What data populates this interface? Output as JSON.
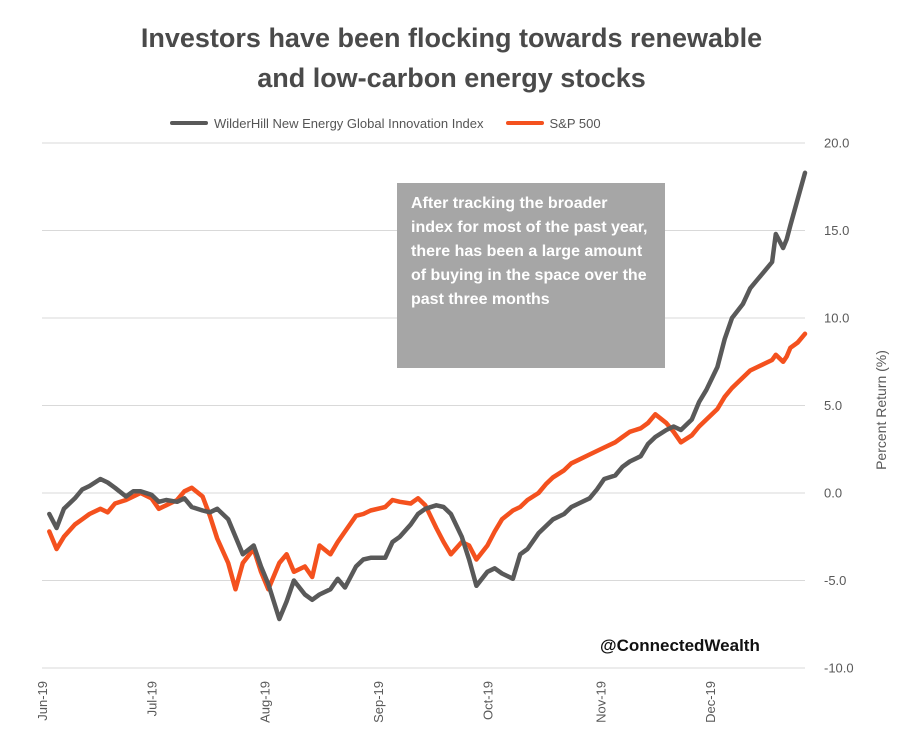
{
  "chart_data": {
    "type": "line",
    "title_lines": [
      "Investors have been flocking towards renewable",
      "and low-carbon energy stocks"
    ],
    "ylabel": "Percent Return (%)",
    "xlabel": "",
    "ylim": [
      -10,
      20
    ],
    "y_ticks": [
      "20.0",
      "15.0",
      "10.0",
      "5.0",
      "0.0",
      "-5.0",
      "-10.0"
    ],
    "y_tick_values": [
      20,
      15,
      10,
      5,
      0,
      -5,
      -10
    ],
    "x_tick_labels": [
      "Jun-19",
      "Jul-19",
      "Aug-19",
      "Sep-19",
      "Oct-19",
      "Nov-19",
      "Dec-19"
    ],
    "x_tick_dates": [
      "2019-06-01",
      "2019-07-01",
      "2019-08-01",
      "2019-09-01",
      "2019-10-01",
      "2019-11-01",
      "2019-12-01"
    ],
    "xlim": [
      "2019-06-01",
      "2019-12-27"
    ],
    "y_axis_side": "right",
    "grid": "horizontal",
    "legend_position": "top",
    "series": [
      {
        "name": "WilderHill New Energy Global Innovation Index",
        "color": "#595959",
        "points": [
          [
            "2019-06-03",
            -1.2
          ],
          [
            "2019-06-05",
            -2.0
          ],
          [
            "2019-06-07",
            -0.9
          ],
          [
            "2019-06-10",
            -0.3
          ],
          [
            "2019-06-12",
            0.2
          ],
          [
            "2019-06-14",
            0.4
          ],
          [
            "2019-06-17",
            0.8
          ],
          [
            "2019-06-19",
            0.6
          ],
          [
            "2019-06-21",
            0.3
          ],
          [
            "2019-06-24",
            -0.2
          ],
          [
            "2019-06-26",
            0.1
          ],
          [
            "2019-06-28",
            0.1
          ],
          [
            "2019-07-01",
            -0.1
          ],
          [
            "2019-07-03",
            -0.5
          ],
          [
            "2019-07-05",
            -0.4
          ],
          [
            "2019-07-08",
            -0.5
          ],
          [
            "2019-07-10",
            -0.3
          ],
          [
            "2019-07-12",
            -0.8
          ],
          [
            "2019-07-15",
            -1.0
          ],
          [
            "2019-07-17",
            -1.1
          ],
          [
            "2019-07-19",
            -0.9
          ],
          [
            "2019-07-22",
            -1.5
          ],
          [
            "2019-07-24",
            -2.5
          ],
          [
            "2019-07-26",
            -3.5
          ],
          [
            "2019-07-29",
            -3.0
          ],
          [
            "2019-07-31",
            -4.2
          ],
          [
            "2019-08-02",
            -5.2
          ],
          [
            "2019-08-05",
            -7.2
          ],
          [
            "2019-08-07",
            -6.2
          ],
          [
            "2019-08-09",
            -5.0
          ],
          [
            "2019-08-12",
            -5.8
          ],
          [
            "2019-08-14",
            -6.1
          ],
          [
            "2019-08-16",
            -5.8
          ],
          [
            "2019-08-19",
            -5.5
          ],
          [
            "2019-08-21",
            -4.9
          ],
          [
            "2019-08-23",
            -5.4
          ],
          [
            "2019-08-26",
            -4.2
          ],
          [
            "2019-08-28",
            -3.8
          ],
          [
            "2019-08-30",
            -3.7
          ],
          [
            "2019-09-03",
            -3.7
          ],
          [
            "2019-09-05",
            -2.8
          ],
          [
            "2019-09-07",
            -2.5
          ],
          [
            "2019-09-10",
            -1.8
          ],
          [
            "2019-09-12",
            -1.2
          ],
          [
            "2019-09-14",
            -0.9
          ],
          [
            "2019-09-17",
            -0.7
          ],
          [
            "2019-09-19",
            -0.8
          ],
          [
            "2019-09-21",
            -1.2
          ],
          [
            "2019-09-24",
            -2.5
          ],
          [
            "2019-09-26",
            -3.8
          ],
          [
            "2019-09-28",
            -5.3
          ],
          [
            "2019-10-01",
            -4.5
          ],
          [
            "2019-10-03",
            -4.3
          ],
          [
            "2019-10-05",
            -4.6
          ],
          [
            "2019-10-08",
            -4.9
          ],
          [
            "2019-10-10",
            -3.5
          ],
          [
            "2019-10-12",
            -3.2
          ],
          [
            "2019-10-15",
            -2.3
          ],
          [
            "2019-10-17",
            -1.9
          ],
          [
            "2019-10-19",
            -1.5
          ],
          [
            "2019-10-22",
            -1.2
          ],
          [
            "2019-10-24",
            -0.8
          ],
          [
            "2019-10-26",
            -0.6
          ],
          [
            "2019-10-29",
            -0.3
          ],
          [
            "2019-10-31",
            0.2
          ],
          [
            "2019-11-02",
            0.8
          ],
          [
            "2019-11-05",
            1.0
          ],
          [
            "2019-11-07",
            1.5
          ],
          [
            "2019-11-09",
            1.8
          ],
          [
            "2019-11-12",
            2.1
          ],
          [
            "2019-11-14",
            2.8
          ],
          [
            "2019-11-16",
            3.2
          ],
          [
            "2019-11-19",
            3.6
          ],
          [
            "2019-11-21",
            3.8
          ],
          [
            "2019-11-23",
            3.6
          ],
          [
            "2019-11-26",
            4.2
          ],
          [
            "2019-11-28",
            5.2
          ],
          [
            "2019-11-30",
            5.9
          ],
          [
            "2019-12-03",
            7.2
          ],
          [
            "2019-12-05",
            8.8
          ],
          [
            "2019-12-07",
            10.0
          ],
          [
            "2019-12-10",
            10.8
          ],
          [
            "2019-12-12",
            11.7
          ],
          [
            "2019-12-14",
            12.2
          ],
          [
            "2019-12-16",
            12.7
          ],
          [
            "2019-12-18",
            13.2
          ],
          [
            "2019-12-19",
            14.8
          ],
          [
            "2019-12-21",
            14.0
          ],
          [
            "2019-12-22",
            14.5
          ],
          [
            "2019-12-23",
            15.3
          ],
          [
            "2019-12-25",
            16.8
          ],
          [
            "2019-12-27",
            18.3
          ]
        ]
      },
      {
        "name": "S&P 500",
        "color": "#f4511e",
        "points": [
          [
            "2019-06-03",
            -2.2
          ],
          [
            "2019-06-05",
            -3.2
          ],
          [
            "2019-06-07",
            -2.5
          ],
          [
            "2019-06-10",
            -1.8
          ],
          [
            "2019-06-12",
            -1.5
          ],
          [
            "2019-06-14",
            -1.2
          ],
          [
            "2019-06-17",
            -0.9
          ],
          [
            "2019-06-19",
            -1.1
          ],
          [
            "2019-06-21",
            -0.6
          ],
          [
            "2019-06-24",
            -0.4
          ],
          [
            "2019-06-26",
            -0.2
          ],
          [
            "2019-06-28",
            0.0
          ],
          [
            "2019-07-01",
            -0.3
          ],
          [
            "2019-07-03",
            -0.9
          ],
          [
            "2019-07-05",
            -0.7
          ],
          [
            "2019-07-08",
            -0.4
          ],
          [
            "2019-07-10",
            0.1
          ],
          [
            "2019-07-12",
            0.3
          ],
          [
            "2019-07-15",
            -0.2
          ],
          [
            "2019-07-17",
            -1.3
          ],
          [
            "2019-07-19",
            -2.6
          ],
          [
            "2019-07-22",
            -4.0
          ],
          [
            "2019-07-24",
            -5.5
          ],
          [
            "2019-07-26",
            -4.0
          ],
          [
            "2019-07-29",
            -3.2
          ],
          [
            "2019-07-31",
            -4.5
          ],
          [
            "2019-08-02",
            -5.5
          ],
          [
            "2019-08-05",
            -4.0
          ],
          [
            "2019-08-07",
            -3.5
          ],
          [
            "2019-08-09",
            -4.5
          ],
          [
            "2019-08-12",
            -4.2
          ],
          [
            "2019-08-14",
            -4.8
          ],
          [
            "2019-08-16",
            -3.0
          ],
          [
            "2019-08-19",
            -3.5
          ],
          [
            "2019-08-21",
            -2.8
          ],
          [
            "2019-08-23",
            -2.2
          ],
          [
            "2019-08-26",
            -1.3
          ],
          [
            "2019-08-28",
            -1.2
          ],
          [
            "2019-08-30",
            -1.0
          ],
          [
            "2019-09-03",
            -0.8
          ],
          [
            "2019-09-05",
            -0.4
          ],
          [
            "2019-09-07",
            -0.5
          ],
          [
            "2019-09-10",
            -0.6
          ],
          [
            "2019-09-12",
            -0.3
          ],
          [
            "2019-09-14",
            -0.7
          ],
          [
            "2019-09-17",
            -2.0
          ],
          [
            "2019-09-19",
            -2.8
          ],
          [
            "2019-09-21",
            -3.5
          ],
          [
            "2019-09-24",
            -2.8
          ],
          [
            "2019-09-26",
            -3.0
          ],
          [
            "2019-09-28",
            -3.8
          ],
          [
            "2019-10-01",
            -3.0
          ],
          [
            "2019-10-03",
            -2.2
          ],
          [
            "2019-10-05",
            -1.5
          ],
          [
            "2019-10-08",
            -1.0
          ],
          [
            "2019-10-10",
            -0.8
          ],
          [
            "2019-10-12",
            -0.4
          ],
          [
            "2019-10-15",
            0.0
          ],
          [
            "2019-10-17",
            0.5
          ],
          [
            "2019-10-19",
            0.9
          ],
          [
            "2019-10-22",
            1.3
          ],
          [
            "2019-10-24",
            1.7
          ],
          [
            "2019-10-26",
            1.9
          ],
          [
            "2019-10-29",
            2.2
          ],
          [
            "2019-10-31",
            2.4
          ],
          [
            "2019-11-02",
            2.6
          ],
          [
            "2019-11-05",
            2.9
          ],
          [
            "2019-11-07",
            3.2
          ],
          [
            "2019-11-09",
            3.5
          ],
          [
            "2019-11-12",
            3.7
          ],
          [
            "2019-11-14",
            4.0
          ],
          [
            "2019-11-16",
            4.5
          ],
          [
            "2019-11-19",
            4.0
          ],
          [
            "2019-11-21",
            3.5
          ],
          [
            "2019-11-23",
            2.9
          ],
          [
            "2019-11-26",
            3.3
          ],
          [
            "2019-11-28",
            3.8
          ],
          [
            "2019-11-30",
            4.2
          ],
          [
            "2019-12-03",
            4.8
          ],
          [
            "2019-12-05",
            5.5
          ],
          [
            "2019-12-07",
            6.0
          ],
          [
            "2019-12-10",
            6.6
          ],
          [
            "2019-12-12",
            7.0
          ],
          [
            "2019-12-14",
            7.2
          ],
          [
            "2019-12-16",
            7.4
          ],
          [
            "2019-12-18",
            7.6
          ],
          [
            "2019-12-19",
            7.9
          ],
          [
            "2019-12-21",
            7.5
          ],
          [
            "2019-12-22",
            7.8
          ],
          [
            "2019-12-23",
            8.3
          ],
          [
            "2019-12-25",
            8.6
          ],
          [
            "2019-12-27",
            9.1
          ]
        ]
      }
    ],
    "annotation": "After tracking the broader index for most of the past year, there has been a large amount of buying in the space over the past three months",
    "watermark": "@ConnectedWealth"
  }
}
